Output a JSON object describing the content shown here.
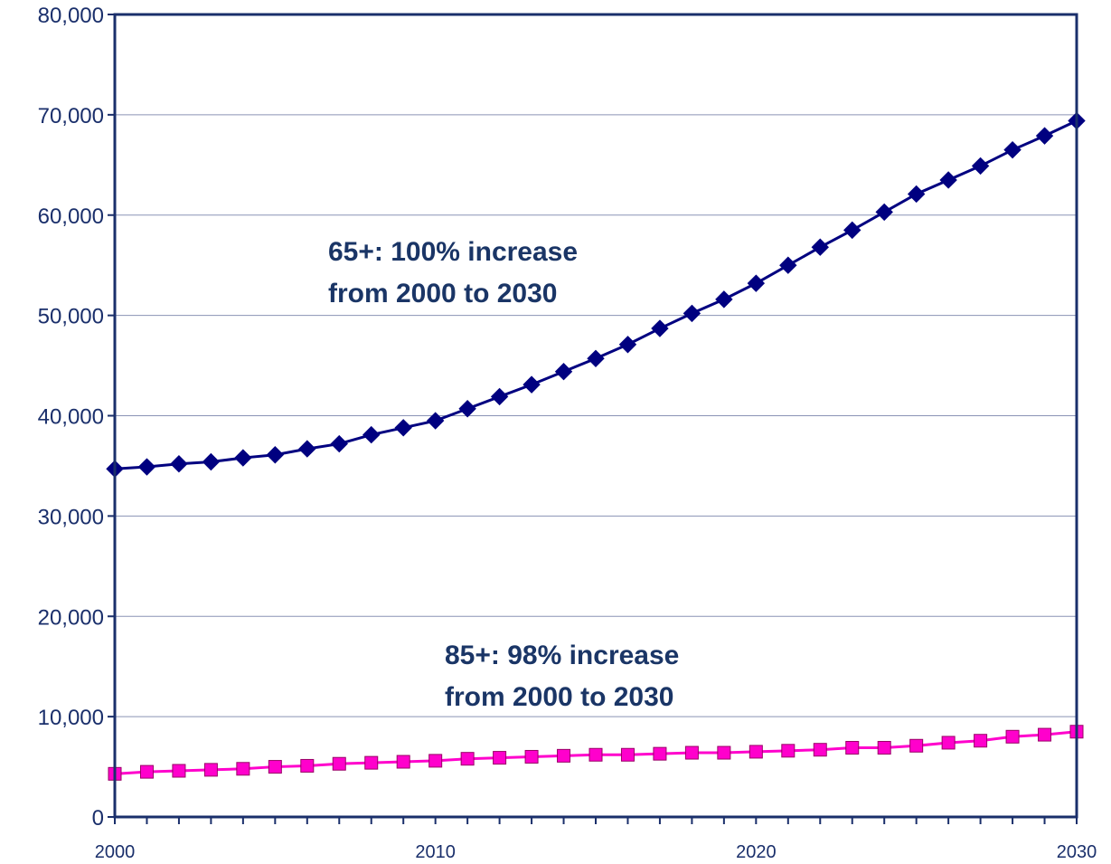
{
  "chart_data": {
    "type": "line",
    "title": "",
    "xlabel": "",
    "ylabel": "",
    "xlim": [
      2000,
      2030
    ],
    "ylim": [
      0,
      80000
    ],
    "y_ticks": [
      "0",
      "10,000",
      "20,000",
      "30,000",
      "40,000",
      "50,000",
      "60,000",
      "70,000",
      "80,000"
    ],
    "x_ticks": [
      "2000",
      "2010",
      "2020",
      "2030"
    ],
    "grid": "horizontal",
    "legend": "none",
    "x": [
      2000,
      2001,
      2002,
      2003,
      2004,
      2005,
      2006,
      2007,
      2008,
      2009,
      2010,
      2011,
      2012,
      2013,
      2014,
      2015,
      2016,
      2017,
      2018,
      2019,
      2020,
      2021,
      2022,
      2023,
      2024,
      2025,
      2026,
      2027,
      2028,
      2029,
      2030
    ],
    "series": [
      {
        "color": "#000080",
        "marker": "diamond",
        "values": [
          34700,
          34900,
          35200,
          35400,
          35800,
          36100,
          36700,
          37200,
          38100,
          38800,
          39500,
          40700,
          41900,
          43100,
          44400,
          45700,
          47100,
          48700,
          50200,
          51600,
          53200,
          55000,
          56800,
          58500,
          60300,
          62100,
          63500,
          64900,
          66500,
          67900,
          69400
        ]
      },
      {
        "color": "#ff00cc",
        "marker": "square",
        "values": [
          4300,
          4500,
          4600,
          4700,
          4800,
          5000,
          5100,
          5300,
          5400,
          5500,
          5600,
          5800,
          5900,
          6000,
          6100,
          6200,
          6200,
          6300,
          6400,
          6400,
          6500,
          6600,
          6700,
          6900,
          6900,
          7100,
          7400,
          7600,
          8000,
          8200,
          8500
        ]
      }
    ],
    "annotations": [
      {
        "line1": "65+: 100% increase",
        "line2": "from 2000 to 2030"
      },
      {
        "line1": "85+: 98% increase",
        "line2": "from 2000 to 2030"
      }
    ]
  }
}
